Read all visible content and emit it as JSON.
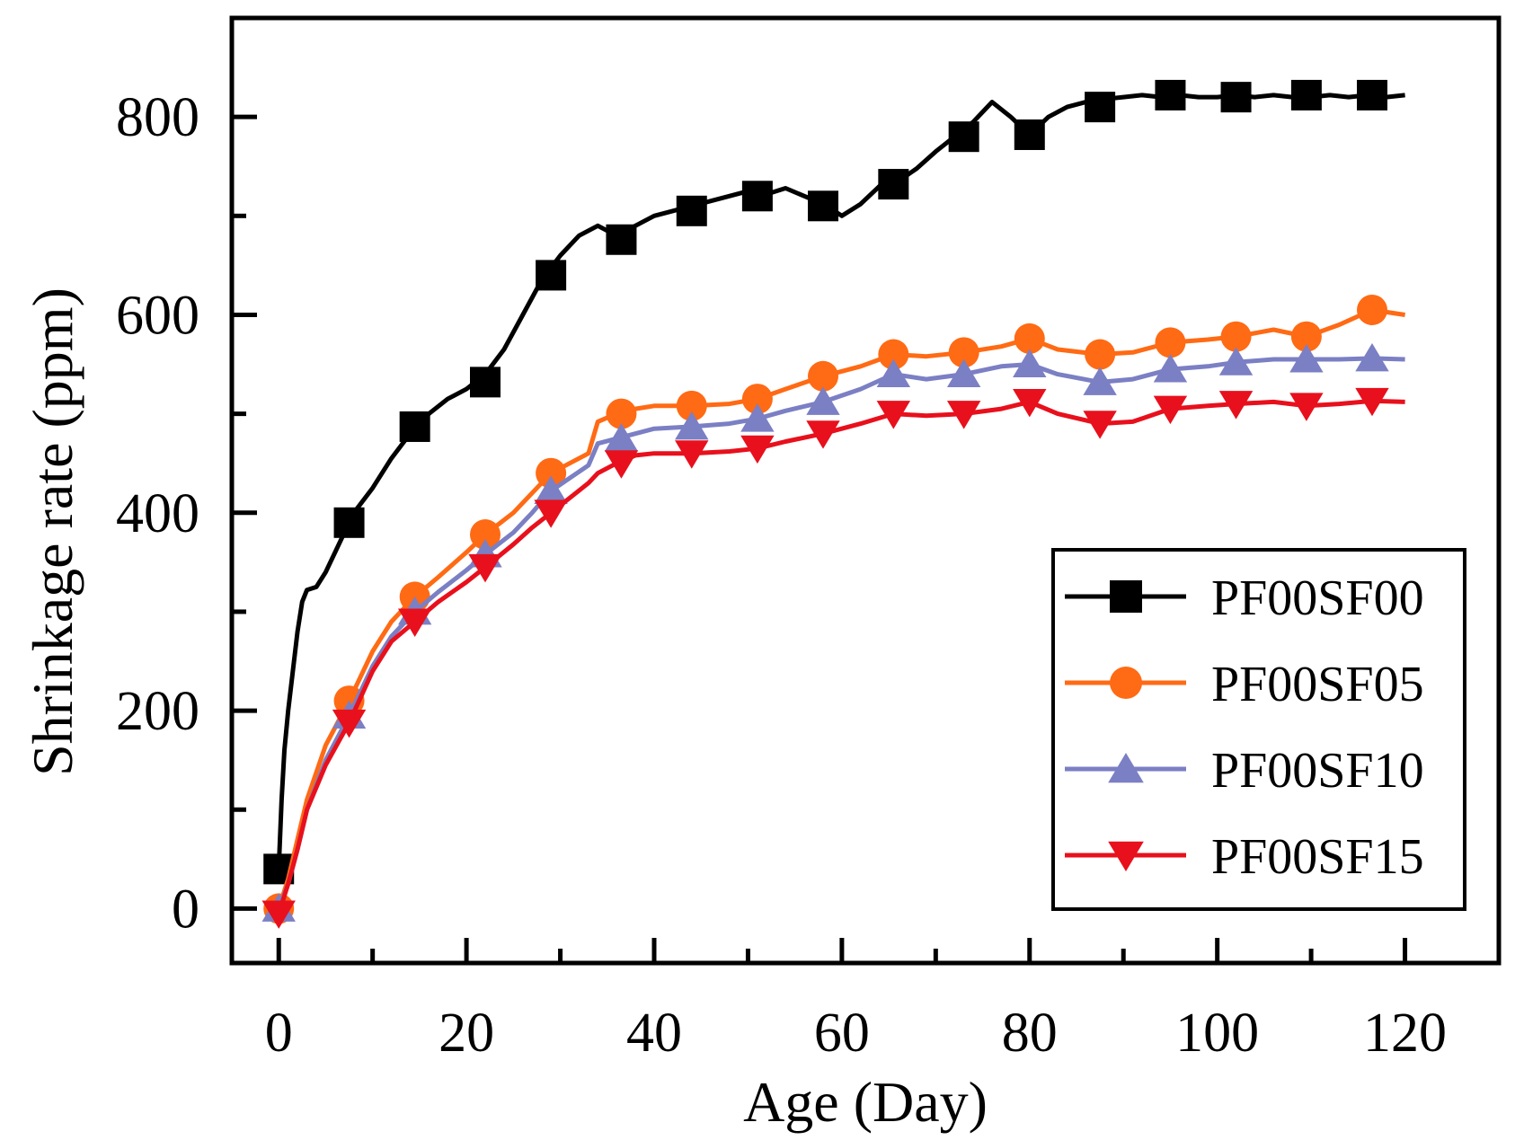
{
  "chart_data": {
    "type": "line",
    "xlabel": "Age (Day)",
    "ylabel": "Shrinkage rate (ppm)",
    "xlim": [
      -5,
      130
    ],
    "ylim": [
      -55,
      900
    ],
    "xticks": [
      0,
      20,
      40,
      60,
      80,
      100,
      120
    ],
    "xminor": [
      10,
      30,
      50,
      70,
      90,
      110
    ],
    "yticks": [
      0,
      200,
      400,
      600,
      800
    ],
    "yminor": [
      100,
      300,
      500,
      700
    ],
    "legend_position": "lower-right",
    "series": [
      {
        "name": "PF00SF00",
        "color": "#000000",
        "marker": "square",
        "x": [
          0,
          0.3,
          0.6,
          1,
          1.5,
          2,
          2.5,
          3,
          4,
          5,
          6,
          7,
          8,
          10,
          12,
          14,
          16,
          18,
          20,
          22,
          24,
          26,
          28,
          30,
          32,
          34,
          36,
          38,
          40,
          42,
          44,
          46,
          48,
          50,
          52,
          54,
          56,
          58,
          60,
          62,
          64,
          66,
          68,
          70,
          72,
          74,
          76,
          78,
          80,
          82,
          84,
          86,
          88,
          90,
          92,
          94,
          96,
          98,
          100,
          102,
          104,
          106,
          108,
          110,
          112,
          114,
          116,
          118,
          120
        ],
        "y": [
          40,
          110,
          160,
          200,
          240,
          280,
          310,
          322,
          325,
          340,
          360,
          380,
          400,
          425,
          455,
          480,
          500,
          515,
          525,
          540,
          565,
          600,
          635,
          660,
          680,
          690,
          680,
          690,
          700,
          705,
          710,
          715,
          720,
          725,
          722,
          728,
          720,
          712,
          700,
          712,
          730,
          735,
          748,
          765,
          780,
          795,
          815,
          800,
          782,
          800,
          810,
          815,
          818,
          820,
          822,
          820,
          822,
          820,
          820,
          822,
          820,
          822,
          820,
          820,
          822,
          820,
          822,
          820,
          822
        ],
        "markers_x": [
          0,
          7.5,
          14.5,
          22,
          29,
          36.5,
          44,
          51,
          58,
          65.5,
          73,
          80,
          87.5,
          95,
          102,
          109.5,
          116.5
        ],
        "markers_y": [
          40,
          390,
          487,
          532,
          640,
          676,
          705,
          720,
          710,
          732,
          780,
          782,
          810,
          822,
          820,
          822,
          822
        ]
      },
      {
        "name": "PF00SF05",
        "color": "#ff6a14",
        "marker": "circle",
        "x": [
          0,
          1,
          2,
          3,
          5,
          7.5,
          10,
          12,
          14.5,
          17,
          20,
          22,
          25,
          27,
          29,
          31,
          33,
          34,
          36,
          38,
          40,
          44,
          48,
          51,
          54,
          58,
          62,
          65.5,
          69,
          73,
          77,
          80,
          83,
          87.5,
          91,
          95,
          99,
          102,
          106,
          109.5,
          113,
          116.5,
          120
        ],
        "y": [
          0,
          30,
          70,
          110,
          165,
          210,
          260,
          290,
          315,
          335,
          360,
          378,
          400,
          420,
          440,
          450,
          460,
          492,
          500,
          505,
          508,
          508,
          510,
          515,
          525,
          538,
          548,
          560,
          558,
          562,
          568,
          576,
          565,
          560,
          562,
          572,
          575,
          578,
          585,
          578,
          590,
          605,
          600
        ],
        "markers_x": [
          0,
          7.5,
          14.5,
          22,
          29,
          36.5,
          44,
          51,
          58,
          65.5,
          73,
          80,
          87.5,
          95,
          102,
          109.5,
          116.5
        ],
        "markers_y": [
          0,
          210,
          315,
          378,
          440,
          500,
          508,
          515,
          538,
          560,
          562,
          576,
          560,
          572,
          578,
          578,
          605
        ]
      },
      {
        "name": "PF00SF10",
        "color": "#7b7fc4",
        "marker": "triangle-up",
        "x": [
          0,
          1,
          2,
          3,
          5,
          7.5,
          10,
          12,
          14.5,
          17,
          20,
          22,
          25,
          27,
          29,
          31,
          33,
          34,
          36,
          38,
          40,
          44,
          48,
          51,
          54,
          58,
          62,
          65.5,
          69,
          73,
          77,
          80,
          83,
          87.5,
          91,
          95,
          99,
          102,
          106,
          109.5,
          113,
          116.5,
          120
        ],
        "y": [
          0,
          25,
          60,
          100,
          150,
          195,
          245,
          275,
          300,
          320,
          342,
          358,
          380,
          400,
          422,
          435,
          448,
          470,
          475,
          480,
          485,
          487,
          490,
          495,
          503,
          512,
          525,
          540,
          535,
          540,
          548,
          550,
          540,
          532,
          535,
          545,
          548,
          552,
          555,
          555,
          555,
          556,
          555
        ],
        "markers_x": [
          0,
          7.5,
          14.5,
          22,
          29,
          36.5,
          44,
          51,
          58,
          65.5,
          73,
          80,
          87.5,
          95,
          102,
          109.5,
          116.5
        ],
        "markers_y": [
          0,
          195,
          300,
          358,
          422,
          475,
          487,
          495,
          512,
          540,
          540,
          550,
          532,
          545,
          552,
          555,
          556
        ]
      },
      {
        "name": "PF00SF15",
        "color": "#e8101c",
        "marker": "triangle-down",
        "x": [
          0,
          1,
          2,
          3,
          5,
          7.5,
          10,
          12,
          14.5,
          17,
          20,
          22,
          25,
          27,
          29,
          31,
          33,
          34,
          36,
          38,
          40,
          44,
          48,
          51,
          54,
          58,
          62,
          65.5,
          69,
          73,
          77,
          80,
          83,
          87.5,
          91,
          95,
          99,
          102,
          106,
          109.5,
          113,
          116.5,
          120
        ],
        "y": [
          -5,
          25,
          60,
          100,
          145,
          188,
          240,
          270,
          290,
          310,
          330,
          345,
          368,
          385,
          400,
          415,
          430,
          440,
          450,
          458,
          460,
          460,
          462,
          465,
          472,
          480,
          490,
          500,
          498,
          500,
          505,
          512,
          500,
          490,
          492,
          505,
          508,
          510,
          512,
          508,
          510,
          513,
          512
        ],
        "markers_x": [
          0,
          7.5,
          14.5,
          22,
          29,
          36.5,
          44,
          51,
          58,
          65.5,
          73,
          80,
          87.5,
          95,
          102,
          109.5,
          116.5
        ],
        "markers_y": [
          -5,
          188,
          290,
          345,
          400,
          450,
          460,
          465,
          480,
          500,
          500,
          512,
          490,
          505,
          510,
          508,
          513
        ]
      }
    ]
  }
}
